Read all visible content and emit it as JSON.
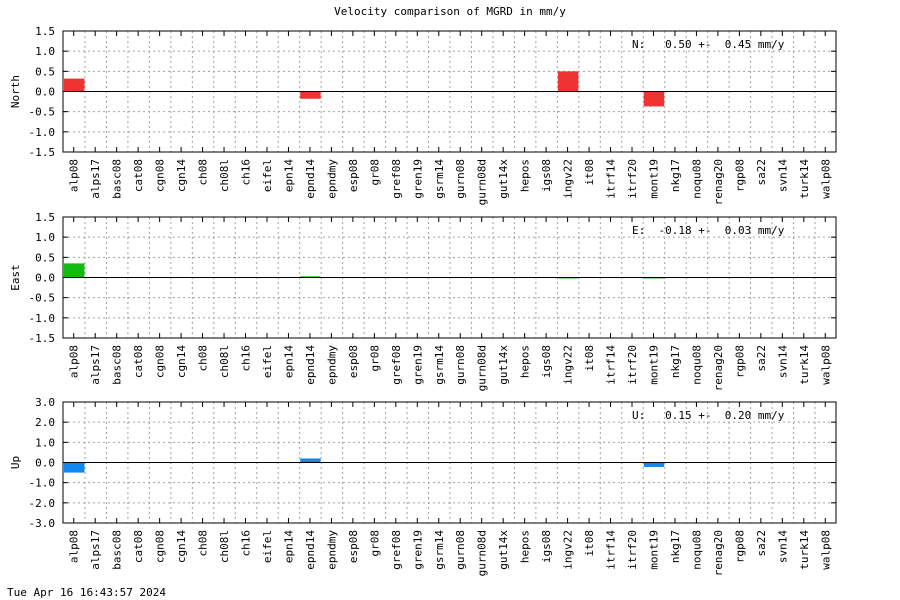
{
  "title": "Velocity comparison of MGRD in mm/y",
  "timestamp": "Tue Apr 16 16:43:57 2024",
  "chart_data": [
    {
      "type": "bar",
      "ylabel": "North",
      "ylim": [
        -1.5,
        1.5
      ],
      "yticks": [
        "1.5",
        "1.0",
        "0.5",
        "0.0",
        "-0.5",
        "-1.0",
        "-1.5"
      ],
      "color": "#ee3333",
      "annotation": "N:   0.50 +-  0.45 mm/y",
      "grid": true,
      "categories": [
        "alp08",
        "alps17",
        "basc08",
        "cat08",
        "cgn08",
        "cgn14",
        "ch08",
        "ch08l",
        "ch16",
        "eifel",
        "epn14",
        "epnd14",
        "epndmy",
        "esp08",
        "gr08",
        "gref08",
        "gren19",
        "gsrm14",
        "gurn08",
        "gurn08d",
        "gut14x",
        "hepos",
        "igs08",
        "ingv22",
        "it08",
        "itrf14",
        "itrf20",
        "mont19",
        "nkg17",
        "noqu08",
        "renag20",
        "rgp08",
        "sa22",
        "svn14",
        "turk14",
        "walp08"
      ],
      "values": [
        0.32,
        0,
        0,
        0,
        0,
        0,
        0,
        0,
        0,
        0,
        0,
        -0.18,
        0,
        0,
        0,
        0,
        0,
        0,
        0,
        0,
        0,
        0,
        0,
        0.5,
        0,
        0,
        0,
        -0.37,
        0,
        0,
        0,
        0,
        0,
        0,
        0,
        0
      ]
    },
    {
      "type": "bar",
      "ylabel": "East",
      "ylim": [
        -1.5,
        1.5
      ],
      "yticks": [
        "1.5",
        "1.0",
        "0.5",
        "0.0",
        "-0.5",
        "-1.0",
        "-1.5"
      ],
      "color": "#11bb11",
      "annotation": "E:  -0.18 +-  0.03 mm/y",
      "grid": true,
      "categories": [
        "alp08",
        "alps17",
        "basc08",
        "cat08",
        "cgn08",
        "cgn14",
        "ch08",
        "ch08l",
        "ch16",
        "eifel",
        "epn14",
        "epnd14",
        "epndmy",
        "esp08",
        "gr08",
        "gref08",
        "gren19",
        "gsrm14",
        "gurn08",
        "gurn08d",
        "gut14x",
        "hepos",
        "igs08",
        "ingv22",
        "it08",
        "itrf14",
        "itrf20",
        "mont19",
        "nkg17",
        "noqu08",
        "renag20",
        "rgp08",
        "sa22",
        "svn14",
        "turk14",
        "walp08"
      ],
      "values": [
        0.35,
        0,
        0,
        0,
        0,
        0,
        0,
        0,
        0,
        0,
        0,
        0.03,
        0,
        0,
        0,
        0,
        0,
        0,
        0,
        0,
        0,
        0,
        0,
        -0.02,
        0,
        0,
        0,
        -0.02,
        0,
        0,
        0,
        0,
        0,
        0,
        0,
        0
      ]
    },
    {
      "type": "bar",
      "ylabel": "Up",
      "ylim": [
        -3.0,
        3.0
      ],
      "yticks": [
        "3.0",
        "2.0",
        "1.0",
        "0.0",
        "-1.0",
        "-2.0",
        "-3.0"
      ],
      "color": "#1188ee",
      "annotation": "U:   0.15 +-  0.20 mm/y",
      "grid": true,
      "categories": [
        "alp08",
        "alps17",
        "basc08",
        "cat08",
        "cgn08",
        "cgn14",
        "ch08",
        "ch08l",
        "ch16",
        "eifel",
        "epn14",
        "epnd14",
        "epndmy",
        "esp08",
        "gr08",
        "gref08",
        "gren19",
        "gsrm14",
        "gurn08",
        "gurn08d",
        "gut14x",
        "hepos",
        "igs08",
        "ingv22",
        "it08",
        "itrf14",
        "itrf20",
        "mont19",
        "nkg17",
        "noqu08",
        "renag20",
        "rgp08",
        "sa22",
        "svn14",
        "turk14",
        "walp08"
      ],
      "values": [
        -0.5,
        0,
        0,
        0,
        0,
        0,
        0,
        0,
        0,
        0,
        0,
        0.2,
        0,
        0,
        0,
        0,
        0,
        0,
        0,
        0,
        0,
        0,
        0,
        0,
        0,
        0,
        0,
        -0.22,
        0,
        0,
        0,
        0,
        0,
        0,
        0,
        0
      ]
    }
  ]
}
